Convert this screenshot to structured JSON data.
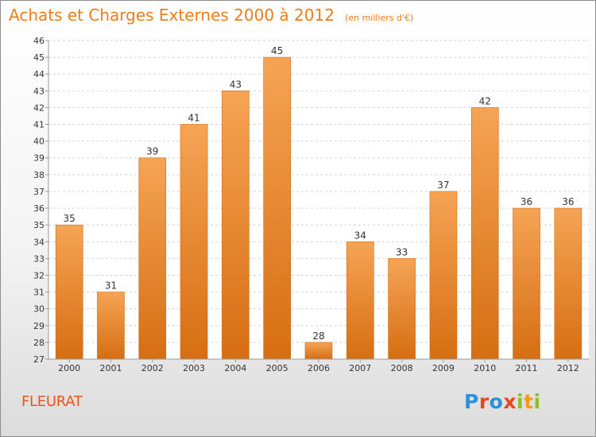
{
  "header": {
    "title": "Achats et Charges Externes 2000 à 2012",
    "subtitle": "(en milliers d'€)"
  },
  "footer": {
    "commune": "FLEURAT",
    "logo_letters": [
      "P",
      "r",
      "o",
      "x",
      "i",
      "t",
      "i"
    ],
    "logo_colors": [
      "#2f8fd8",
      "#e9481e",
      "#2f8fd8",
      "#e9481e",
      "#8cbf26",
      "#f29a1f",
      "#8cbf26"
    ]
  },
  "chart_data": {
    "type": "bar",
    "title": "Achats et Charges Externes 2000 à 2012",
    "subtitle": "(en milliers d'€)",
    "categories": [
      "2000",
      "2001",
      "2002",
      "2003",
      "2004",
      "2005",
      "2006",
      "2007",
      "2008",
      "2009",
      "2010",
      "2011",
      "2012"
    ],
    "values": [
      35,
      31,
      39,
      41,
      43,
      45,
      28,
      34,
      33,
      37,
      42,
      36,
      36
    ],
    "ylim": [
      27,
      46
    ],
    "yticks": [
      27,
      28,
      29,
      30,
      31,
      32,
      33,
      34,
      35,
      36,
      37,
      38,
      39,
      40,
      41,
      42,
      43,
      44,
      45,
      46
    ],
    "grid": true,
    "data_labels": true,
    "bar_color_top": "#f5a455",
    "bar_color_bottom": "#d66e12",
    "xlabel": "",
    "ylabel": ""
  }
}
